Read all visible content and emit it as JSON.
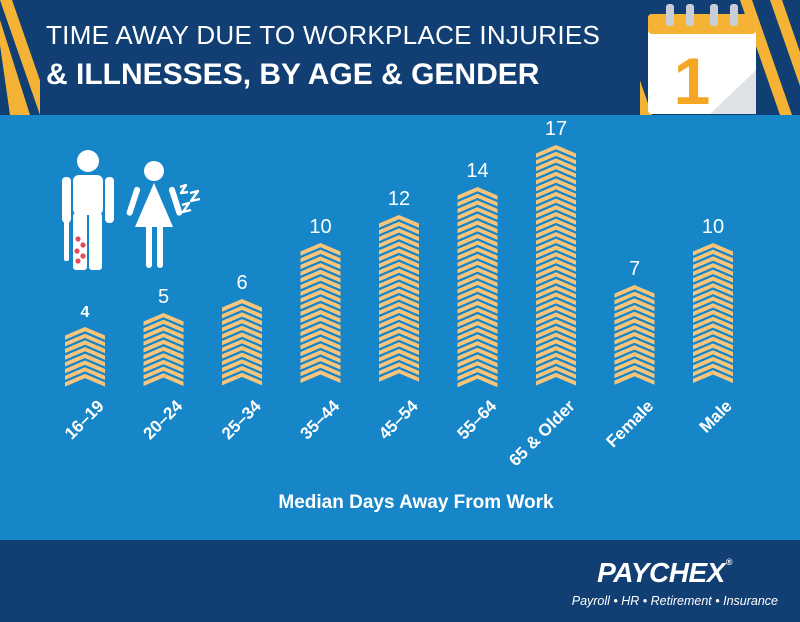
{
  "header": {
    "title_line1": "TIME AWAY DUE TO WORKPLACE INJURIES",
    "title_line2": "& ILLNESSES, BY AGE & GENDER",
    "calendar_number": "1"
  },
  "chart_data": {
    "type": "bar",
    "categories": [
      "16–19",
      "20–24",
      "25–34",
      "35–44",
      "45–54",
      "55–64",
      "65 & Older",
      "Female",
      "Male"
    ],
    "values": [
      4,
      5,
      6,
      10,
      12,
      14,
      17,
      7,
      10
    ],
    "xlabel": "Median Days Away From Work",
    "ylabel": "",
    "title": ""
  },
  "footer": {
    "logo": "PAYCHEX",
    "logo_mark": "®",
    "tagline": "Payroll • HR • Retirement • Insurance"
  },
  "colors": {
    "background": "#1786c8",
    "header": "#123f73",
    "bar_chevron": "#f9c57a",
    "accent_stripe": "#f5b335",
    "text": "#ffffff"
  },
  "icons": [
    "injured-man-icon",
    "woman-icon",
    "sleep-icon",
    "calendar-icon"
  ]
}
